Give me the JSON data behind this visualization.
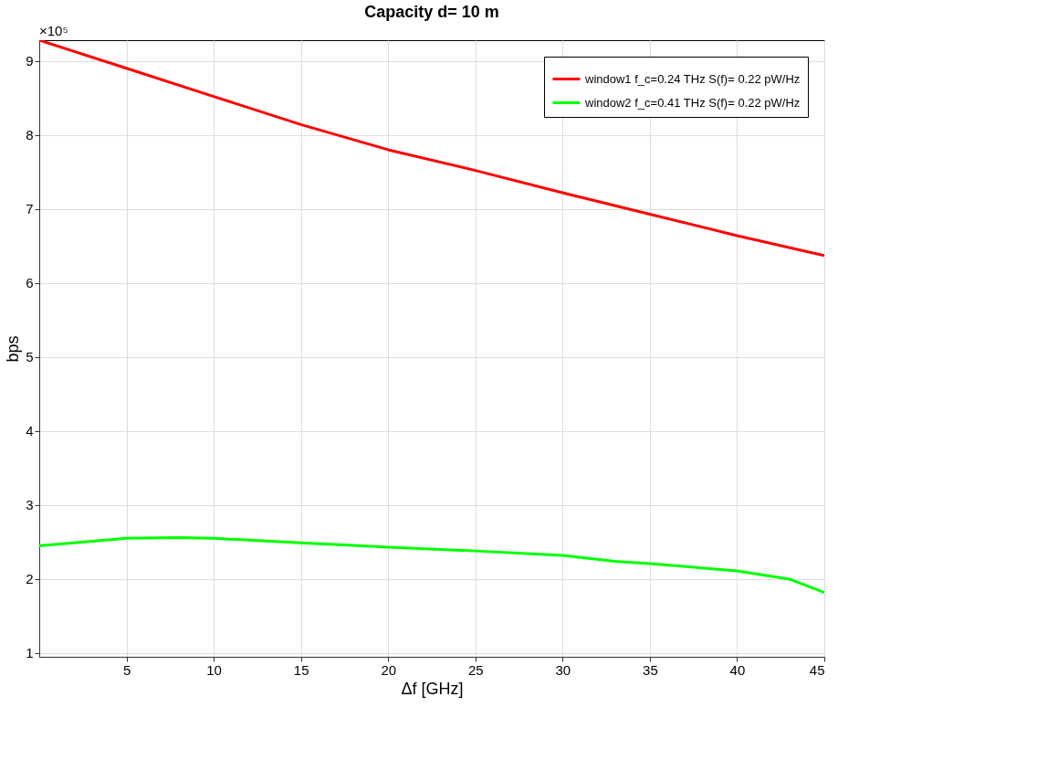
{
  "chart_data": {
    "type": "line",
    "title": "Capacity d= 10 m",
    "xlabel": "Δf [GHz]",
    "ylabel": "bps",
    "annotations": [
      "×10⁵"
    ],
    "xlim": [
      0,
      45
    ],
    "xticks": [
      5,
      10,
      15,
      20,
      25,
      30,
      35,
      40,
      45
    ],
    "ylim": [
      0.95,
      9.28
    ],
    "yticks": [
      1,
      2,
      3,
      4,
      5,
      6,
      7,
      8,
      9
    ],
    "grid": true,
    "legend": "top right",
    "line_style": "solid",
    "marker": "none",
    "x": [
      0,
      5,
      10,
      15,
      20,
      25,
      30,
      35,
      40,
      45
    ],
    "series": [
      {
        "name": "window1 f_c=0.24 THz S(f)= 0.22 pW/Hz",
        "color": "#ff0000",
        "values": [
          9.28,
          8.9,
          8.52,
          8.14,
          7.8,
          7.52,
          7.22,
          6.93,
          6.64,
          6.37
        ]
      },
      {
        "name": "window2 f_c=0.41 THz S(f)= 0.22 pW/Hz",
        "color": "#00ff00",
        "x": [
          0,
          5,
          8,
          10,
          15,
          20,
          25,
          30,
          33,
          35,
          40,
          43,
          45
        ],
        "values": [
          2.45,
          2.55,
          2.56,
          2.55,
          2.49,
          2.43,
          2.38,
          2.32,
          2.24,
          2.21,
          2.11,
          2.0,
          1.82
        ]
      }
    ]
  }
}
